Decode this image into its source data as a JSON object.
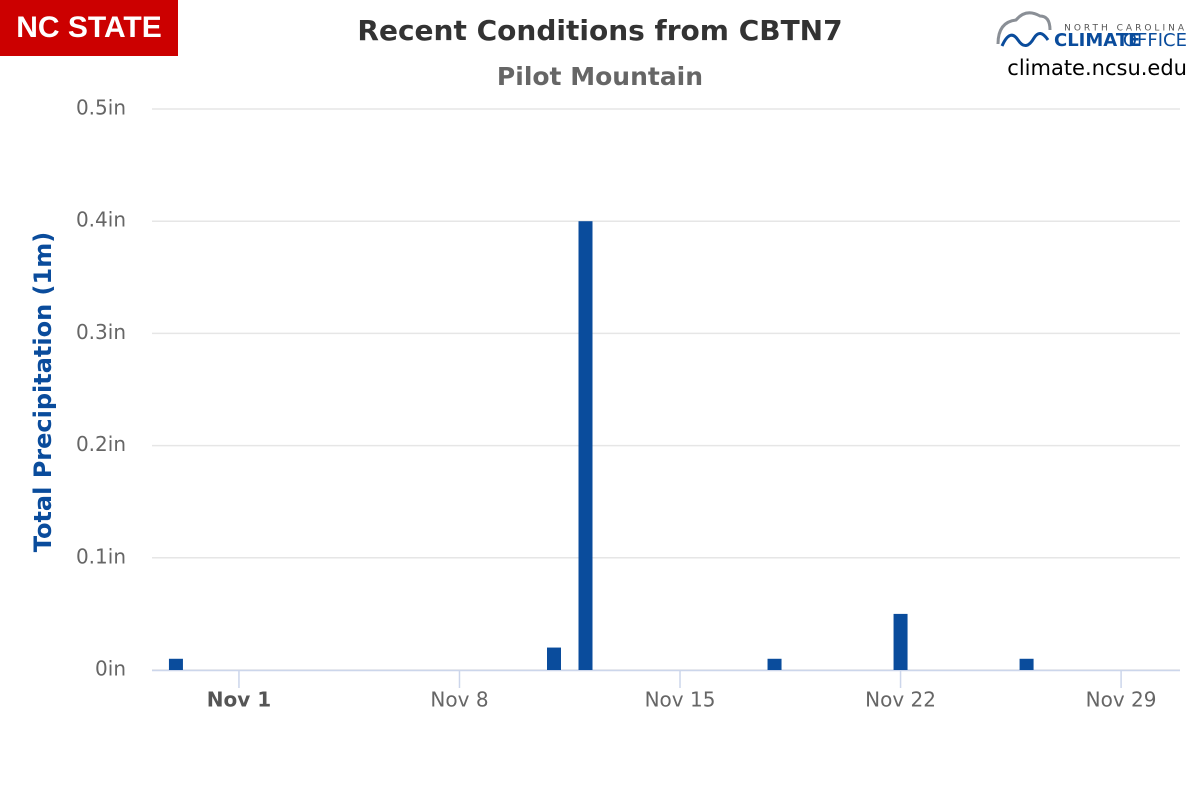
{
  "branding": {
    "left": "NC STATE",
    "right_small": "NORTH CAROLINA",
    "right_main": "CLIMATE",
    "right_office": "OFFICE",
    "url": "climate.ncsu.edu"
  },
  "chart_data": {
    "type": "bar",
    "title": "Recent Conditions from CBTN7",
    "subtitle": "Pilot Mountain",
    "y_label": "Total Precipitation (1m)",
    "x": [
      -1,
      11,
      12,
      18,
      22,
      26
    ],
    "values": [
      0.01,
      0.02,
      0.4,
      0.01,
      0.05,
      0.01
    ],
    "color": "#0a4c9c",
    "xlim": [
      -1.76,
      30.87
    ],
    "xticks": [
      {
        "value": 1,
        "label": "Nov 1"
      },
      {
        "value": 8,
        "label": "Nov 8"
      },
      {
        "value": 15,
        "label": "Nov 15"
      },
      {
        "value": 22,
        "label": "Nov 22"
      },
      {
        "value": 29,
        "label": "Nov 29"
      }
    ],
    "ylim": [
      0,
      0.5
    ],
    "yticks": [
      {
        "value": 0,
        "label": "0in"
      },
      {
        "value": 0.1,
        "label": "0.1in"
      },
      {
        "value": 0.2,
        "label": "0.2in"
      },
      {
        "value": 0.3,
        "label": "0.3in"
      },
      {
        "value": 0.4,
        "label": "0.4in"
      },
      {
        "value": 0.5,
        "label": "0.5in"
      }
    ],
    "grid": true
  }
}
